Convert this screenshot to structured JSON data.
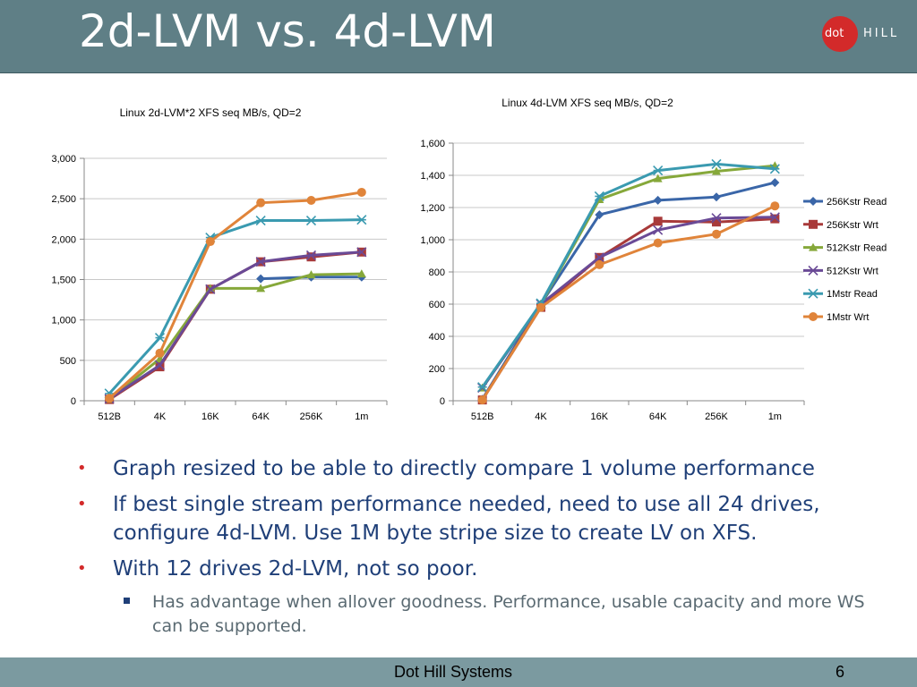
{
  "slide": {
    "title": "2d-LVM vs. 4d-LVM",
    "logo": {
      "dot": "dot",
      "hill": "HILL"
    },
    "bullets": [
      "Graph resized to be able to directly compare 1 volume performance",
      "If best single stream performance needed, need to use all 24 drives, configure 4d-LVM. Use 1M byte stripe size to create LV on XFS.",
      "With 12 drives 2d-LVM, not so poor."
    ],
    "subbullets": [
      "Has advantage when allover goodness. Performance, usable capacity and more WS can be supported."
    ],
    "footer": {
      "company": "Dot Hill Systems",
      "page": "6"
    }
  },
  "chart_data": [
    {
      "type": "line",
      "title": "Linux  2d-LVM*2 XFS  seq MB/s, QD=2",
      "categories": [
        "512B",
        "4K",
        "16K",
        "64K",
        "256K",
        "1m"
      ],
      "ylim": [
        0,
        3000
      ],
      "yticks": [
        0,
        500,
        1000,
        1500,
        2000,
        2500,
        3000
      ],
      "ytick_labels": [
        "0",
        "500",
        "1,000",
        "1,500",
        "2,000",
        "2,500",
        "3,000"
      ],
      "grid": true,
      "series": [
        {
          "name": "256Kstr Read",
          "color": "#3a66a8",
          "marker": "diamond",
          "values": [
            null,
            null,
            null,
            1510,
            1530,
            1530
          ]
        },
        {
          "name": "256Kstr Wrt",
          "color": "#a83a3a",
          "marker": "square",
          "values": [
            15,
            420,
            1380,
            1720,
            1780,
            1840
          ]
        },
        {
          "name": "512Kstr Read",
          "color": "#86a83a",
          "marker": "triangle",
          "values": [
            20,
            520,
            1390,
            1390,
            1560,
            1570
          ]
        },
        {
          "name": "512Kstr Wrt",
          "color": "#6a4a96",
          "marker": "x",
          "values": [
            25,
            440,
            1380,
            1720,
            1800,
            1840
          ]
        },
        {
          "name": "1Mstr Read",
          "color": "#3a9ab0",
          "marker": "star",
          "values": [
            90,
            780,
            2020,
            2230,
            2230,
            2240
          ]
        },
        {
          "name": "1Mstr Wrt",
          "color": "#e0843a",
          "marker": "circle",
          "values": [
            30,
            590,
            1970,
            2450,
            2480,
            2580
          ]
        }
      ]
    },
    {
      "type": "line",
      "title": "Linux  4d-LVM XFS  seq MB/s, QD=2",
      "categories": [
        "512B",
        "4K",
        "16K",
        "64K",
        "256K",
        "1m"
      ],
      "ylim": [
        0,
        1600
      ],
      "yticks": [
        0,
        200,
        400,
        600,
        800,
        1000,
        1200,
        1400,
        1600
      ],
      "ytick_labels": [
        "0",
        "200",
        "400",
        "600",
        "800",
        "1,000",
        "1,200",
        "1,400",
        "1,600"
      ],
      "grid": true,
      "legend": "right",
      "series": [
        {
          "name": "256Kstr Read",
          "color": "#3a66a8",
          "marker": "diamond",
          "values": [
            10,
            600,
            1155,
            1245,
            1265,
            1355
          ]
        },
        {
          "name": "256Kstr Wrt",
          "color": "#a83a3a",
          "marker": "square",
          "values": [
            5,
            580,
            890,
            1115,
            1110,
            1130
          ]
        },
        {
          "name": "512Kstr Read",
          "color": "#86a83a",
          "marker": "triangle",
          "values": [
            80,
            600,
            1250,
            1380,
            1425,
            1460
          ]
        },
        {
          "name": "512Kstr Wrt",
          "color": "#6a4a96",
          "marker": "x",
          "values": [
            80,
            600,
            890,
            1060,
            1135,
            1140
          ]
        },
        {
          "name": "1Mstr Read",
          "color": "#3a9ab0",
          "marker": "star",
          "values": [
            85,
            605,
            1270,
            1430,
            1470,
            1440
          ]
        },
        {
          "name": "1Mstr Wrt",
          "color": "#e0843a",
          "marker": "circle",
          "values": [
            5,
            580,
            845,
            980,
            1035,
            1210
          ]
        }
      ]
    }
  ]
}
